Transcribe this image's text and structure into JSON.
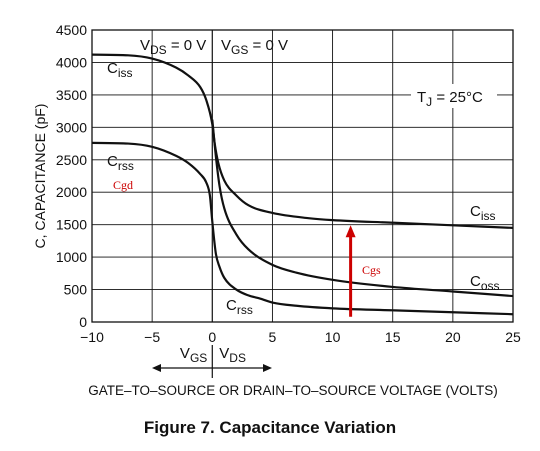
{
  "chart_data": {
    "type": "line",
    "xlabel": "GATE–TO–SOURCE OR DRAIN–TO–SOURCE VOLTAGE (VOLTS)",
    "ylabel": "C, CAPACITANCE (pF)",
    "xlim": [
      -10,
      25
    ],
    "ylim": [
      0,
      4500
    ],
    "x_ticks": [
      "−10",
      "−5",
      "0",
      "5",
      "10",
      "15",
      "20",
      "25"
    ],
    "y_ticks": [
      "0",
      "500",
      "1000",
      "1500",
      "2000",
      "2500",
      "3000",
      "3500",
      "4000",
      "4500"
    ],
    "grid": true,
    "series": [
      {
        "name": "C_iss",
        "x": [
          -10,
          -7,
          -5,
          -3,
          -2,
          -1,
          -0.5,
          0,
          0.2,
          0.5,
          1,
          2,
          3,
          5,
          8,
          10,
          15,
          20,
          25
        ],
        "y": [
          4120,
          4110,
          4060,
          3920,
          3800,
          3620,
          3420,
          3050,
          2750,
          2450,
          2180,
          1950,
          1800,
          1680,
          1600,
          1570,
          1530,
          1490,
          1450
        ]
      },
      {
        "name": "C_rss",
        "x": [
          -10,
          -7,
          -5,
          -3,
          -2,
          -1,
          -0.5,
          -0.2,
          0,
          0.3,
          0.6,
          1,
          2,
          3,
          4,
          5,
          7,
          10,
          15,
          20,
          25
        ],
        "y": [
          2760,
          2750,
          2700,
          2560,
          2450,
          2280,
          2150,
          1950,
          1550,
          1050,
          850,
          680,
          500,
          410,
          360,
          300,
          250,
          210,
          180,
          150,
          120
        ]
      },
      {
        "name": "C_oss",
        "x": [
          0,
          0.3,
          0.6,
          1,
          2,
          3,
          5,
          7,
          10,
          15,
          20,
          25
        ],
        "y": [
          3120,
          2550,
          2100,
          1750,
          1350,
          1120,
          880,
          760,
          650,
          540,
          470,
          400
        ]
      }
    ],
    "labels": {
      "ciss_left": {
        "main": "C",
        "sub": "iss"
      },
      "crss_left": {
        "main": "C",
        "sub": "rss"
      },
      "ciss_right": {
        "main": "C",
        "sub": "iss"
      },
      "coss": {
        "main": "C",
        "sub": "oss"
      },
      "crss_bottom": {
        "main": "C",
        "sub": "rss"
      }
    },
    "annotations": {
      "cgd": "Cgd",
      "cgs": "Cgs",
      "vds_eq": {
        "main": "V",
        "sub": "DS",
        "rest": " = 0 V"
      },
      "vgs_eq": {
        "main": "V",
        "sub": "GS",
        "rest": " = 0 V"
      },
      "tj": {
        "main": "T",
        "sub": "J",
        "rest": " = 25°C"
      },
      "vgs_arrow": {
        "main": "V",
        "sub": "GS"
      },
      "vds_arrow": {
        "main": "V",
        "sub": "DS"
      },
      "cgs_arrow": {
        "x": 11.5,
        "y_from": 80,
        "y_to": 1460
      }
    },
    "colors": {
      "curve": "#111111",
      "annotation": "#cc0000",
      "grid": "#111111"
    }
  },
  "caption": "Figure 7. Capacitance Variation"
}
